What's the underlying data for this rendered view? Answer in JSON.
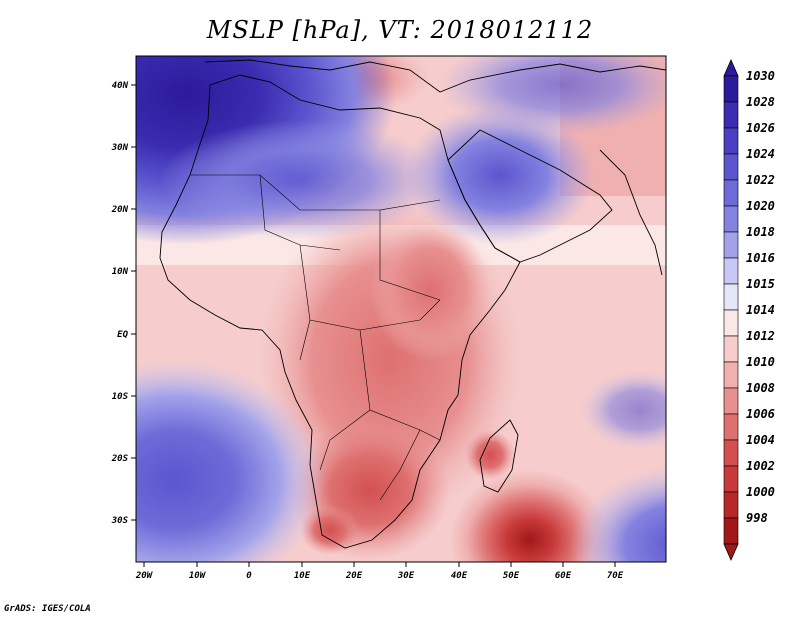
{
  "title": "MSLP [hPa], VT: 2018012112",
  "credit": "GrADS: IGES/COLA",
  "map": {
    "lon_labels": [
      "20W",
      "10W",
      "0",
      "10E",
      "20E",
      "30E",
      "40E",
      "50E",
      "60E",
      "70E"
    ],
    "lat_labels": [
      "40N",
      "30N",
      "20N",
      "10N",
      "EQ",
      "10S",
      "20S",
      "30S"
    ]
  },
  "colorbar": {
    "labels": [
      "1030",
      "1028",
      "1026",
      "1024",
      "1022",
      "1020",
      "1018",
      "1016",
      "1015",
      "1014",
      "1012",
      "1010",
      "1008",
      "1006",
      "1004",
      "1002",
      "1000",
      "998"
    ],
    "colors": [
      "#2b1b9a",
      "#3a2bb0",
      "#4a40c4",
      "#5c55cf",
      "#6e6bd8",
      "#8482e0",
      "#a2a2ea",
      "#c8c8f4",
      "#e6e6fa",
      "#fbe8e6",
      "#f6cccc",
      "#f0b0b0",
      "#e89090",
      "#de7070",
      "#d45050",
      "#c83a3a",
      "#b82828",
      "#a01818"
    ]
  },
  "colors": {
    "high": "#2b1b9a",
    "low": "#a01818",
    "neutral": "#fbf0ee"
  }
}
